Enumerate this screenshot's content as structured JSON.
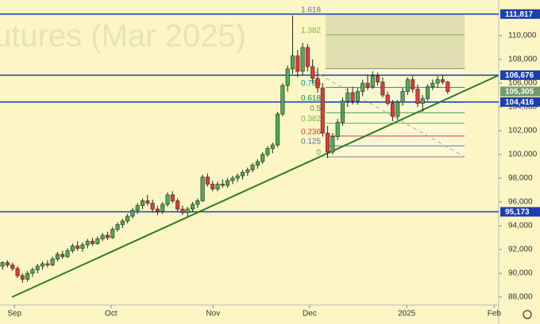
{
  "chart_data": {
    "type": "candlestick",
    "watermark": "utures (Mar 2025)",
    "xlim": [
      -0.5,
      99.2
    ],
    "xticks": [
      {
        "value": 2.4,
        "label": "Sep"
      },
      {
        "value": 21.7,
        "label": "Oct"
      },
      {
        "value": 42.1,
        "label": "Nov"
      },
      {
        "value": 61.4,
        "label": "Dec"
      },
      {
        "value": 80.8,
        "label": "2025"
      },
      {
        "value": 98.3,
        "label": "Feb"
      }
    ],
    "ylim": [
      87333,
      113000
    ],
    "yticks": [
      {
        "value": 88000,
        "label": "88,000"
      },
      {
        "value": 90000,
        "label": "90,000"
      },
      {
        "value": 92000,
        "label": "92,000"
      },
      {
        "value": 94000,
        "label": "94,000"
      },
      {
        "value": 96000,
        "label": "96,000"
      },
      {
        "value": 98000,
        "label": "98,000"
      },
      {
        "value": 100000,
        "label": "100,000"
      },
      {
        "value": 102000,
        "label": "102,000"
      },
      {
        "value": 104000,
        "label": "104,000"
      },
      {
        "value": 106000,
        "label": "106,000"
      },
      {
        "value": 108000,
        "label": "108,000"
      },
      {
        "value": 110000,
        "label": "110,000"
      }
    ],
    "up_color": "#4caf50",
    "down_color": "#e53935",
    "background": "#fbf6c4",
    "ohlc": [
      [
        90600,
        91000,
        90300,
        90900
      ],
      [
        90900,
        91100,
        90500,
        90700
      ],
      [
        90700,
        90900,
        90200,
        90400
      ],
      [
        90400,
        90600,
        89600,
        89800
      ],
      [
        89800,
        90000,
        89200,
        89500
      ],
      [
        89500,
        90200,
        89300,
        90000
      ],
      [
        90000,
        90500,
        89700,
        90300
      ],
      [
        90300,
        90800,
        90000,
        90600
      ],
      [
        90600,
        91000,
        90300,
        90800
      ],
      [
        90800,
        91100,
        90500,
        90700
      ],
      [
        90700,
        91400,
        90600,
        91200
      ],
      [
        91200,
        91800,
        91000,
        91600
      ],
      [
        91600,
        91900,
        91200,
        91400
      ],
      [
        91400,
        92100,
        91300,
        91900
      ],
      [
        91900,
        92500,
        91700,
        92300
      ],
      [
        92300,
        92700,
        91900,
        92100
      ],
      [
        92100,
        92600,
        91800,
        92400
      ],
      [
        92400,
        92900,
        92100,
        92700
      ],
      [
        92700,
        93000,
        92300,
        92500
      ],
      [
        92500,
        93100,
        92400,
        92900
      ],
      [
        92900,
        93400,
        92700,
        93200
      ],
      [
        93200,
        93500,
        92800,
        93000
      ],
      [
        93000,
        93900,
        92900,
        93700
      ],
      [
        93700,
        94300,
        93500,
        94100
      ],
      [
        94100,
        94600,
        93800,
        94400
      ],
      [
        94400,
        95000,
        94200,
        94800
      ],
      [
        94800,
        95500,
        94600,
        95300
      ],
      [
        95300,
        95900,
        95000,
        95700
      ],
      [
        95700,
        96300,
        95400,
        96100
      ],
      [
        96100,
        96600,
        95700,
        95900
      ],
      [
        95900,
        96200,
        95100,
        95400
      ],
      [
        95400,
        95700,
        94900,
        95200
      ],
      [
        95200,
        96000,
        95000,
        95800
      ],
      [
        95800,
        96800,
        95600,
        96600
      ],
      [
        96600,
        96900,
        95900,
        96100
      ],
      [
        96100,
        96300,
        95200,
        95400
      ],
      [
        95400,
        95700,
        94900,
        95100
      ],
      [
        95100,
        95600,
        94800,
        95400
      ],
      [
        95400,
        96000,
        95200,
        95800
      ],
      [
        95800,
        96300,
        95500,
        96100
      ],
      [
        96100,
        98300,
        96000,
        98100
      ],
      [
        98100,
        98400,
        97300,
        97500
      ],
      [
        97500,
        97800,
        96900,
        97100
      ],
      [
        97100,
        97700,
        96900,
        97500
      ],
      [
        97500,
        97900,
        97200,
        97400
      ],
      [
        97400,
        98000,
        97200,
        97800
      ],
      [
        97800,
        98200,
        97500,
        98000
      ],
      [
        98000,
        98400,
        97700,
        98200
      ],
      [
        98200,
        98700,
        97900,
        98500
      ],
      [
        98500,
        98900,
        98200,
        98700
      ],
      [
        98700,
        99300,
        98500,
        99100
      ],
      [
        99100,
        99600,
        98800,
        99400
      ],
      [
        99400,
        100200,
        99200,
        100000
      ],
      [
        100000,
        100700,
        99800,
        100500
      ],
      [
        100500,
        101000,
        100100,
        100800
      ],
      [
        100800,
        103600,
        100600,
        103400
      ],
      [
        103400,
        106000,
        103200,
        105800
      ],
      [
        105800,
        107500,
        105300,
        107200
      ],
      [
        107200,
        111700,
        106800,
        108300
      ],
      [
        108300,
        108800,
        106500,
        107000
      ],
      [
        107000,
        109400,
        106700,
        109000
      ],
      [
        109000,
        109300,
        107000,
        107400
      ],
      [
        107400,
        108000,
        106000,
        106400
      ],
      [
        106400,
        107300,
        105200,
        105600
      ],
      [
        105600,
        106000,
        101500,
        101800
      ],
      [
        101800,
        102400,
        99700,
        100200
      ],
      [
        100200,
        101800,
        100000,
        101500
      ],
      [
        101500,
        103000,
        101200,
        102700
      ],
      [
        102700,
        104800,
        102400,
        104500
      ],
      [
        104500,
        105600,
        104000,
        105200
      ],
      [
        105200,
        105700,
        104200,
        104500
      ],
      [
        104500,
        105600,
        104200,
        105300
      ],
      [
        105300,
        106300,
        104900,
        106000
      ],
      [
        106000,
        106700,
        105400,
        105700
      ],
      [
        105700,
        107000,
        105500,
        106600
      ],
      [
        106600,
        106900,
        105800,
        106100
      ],
      [
        106100,
        106500,
        104800,
        105000
      ],
      [
        105000,
        105300,
        104100,
        104300
      ],
      [
        104300,
        104600,
        102800,
        103200
      ],
      [
        103200,
        104600,
        102900,
        104400
      ],
      [
        104400,
        105600,
        104100,
        105300
      ],
      [
        105300,
        106500,
        105000,
        106300
      ],
      [
        106300,
        106600,
        105200,
        105500
      ],
      [
        105500,
        105900,
        104000,
        104300
      ],
      [
        104300,
        105000,
        103600,
        104700
      ],
      [
        104700,
        105900,
        104500,
        105700
      ],
      [
        105700,
        106300,
        105400,
        106000
      ],
      [
        106000,
        106600,
        105600,
        106300
      ],
      [
        106300,
        106700,
        105900,
        106100
      ],
      [
        106100,
        106200,
        105100,
        105300
      ]
    ],
    "levels": [
      {
        "value": 111817,
        "label": "111,817"
      },
      {
        "value": 106676,
        "label": "106,676"
      },
      {
        "value": 104416,
        "label": "104,416"
      },
      {
        "value": 95173,
        "label": "95,173"
      }
    ],
    "level_color": "#1a3fb0",
    "last_price": {
      "value": 105305,
      "label": "105,305"
    },
    "trendline": {
      "x": [
        1.9,
        99.2
      ],
      "y": [
        88000,
        106667
      ],
      "color": "#2e7d1f"
    },
    "dashed_line": {
      "x": [
        62.2,
        92.4
      ],
      "y": [
        107000,
        99800
      ],
      "color": "#aaaaaa"
    },
    "fib": {
      "x": [
        64.6,
        92.4
      ],
      "low": 99800,
      "high": 107227,
      "levels": [
        {
          "ratio": 0,
          "color": "#888888"
        },
        {
          "ratio": 0.125,
          "color": "#5c6bc0"
        },
        {
          "ratio": 0.236,
          "color": "#e53935"
        },
        {
          "ratio": 0.382,
          "color": "#7cb342"
        },
        {
          "ratio": 0.5,
          "color": "#43a047"
        },
        {
          "ratio": 0.618,
          "color": "#00897b"
        },
        {
          "ratio": 0.786,
          "color": "#0097a7"
        },
        {
          "ratio": 1.382,
          "color": "#7cb342"
        },
        {
          "ratio": 1.618,
          "color": "#5c6bc0"
        }
      ]
    }
  }
}
